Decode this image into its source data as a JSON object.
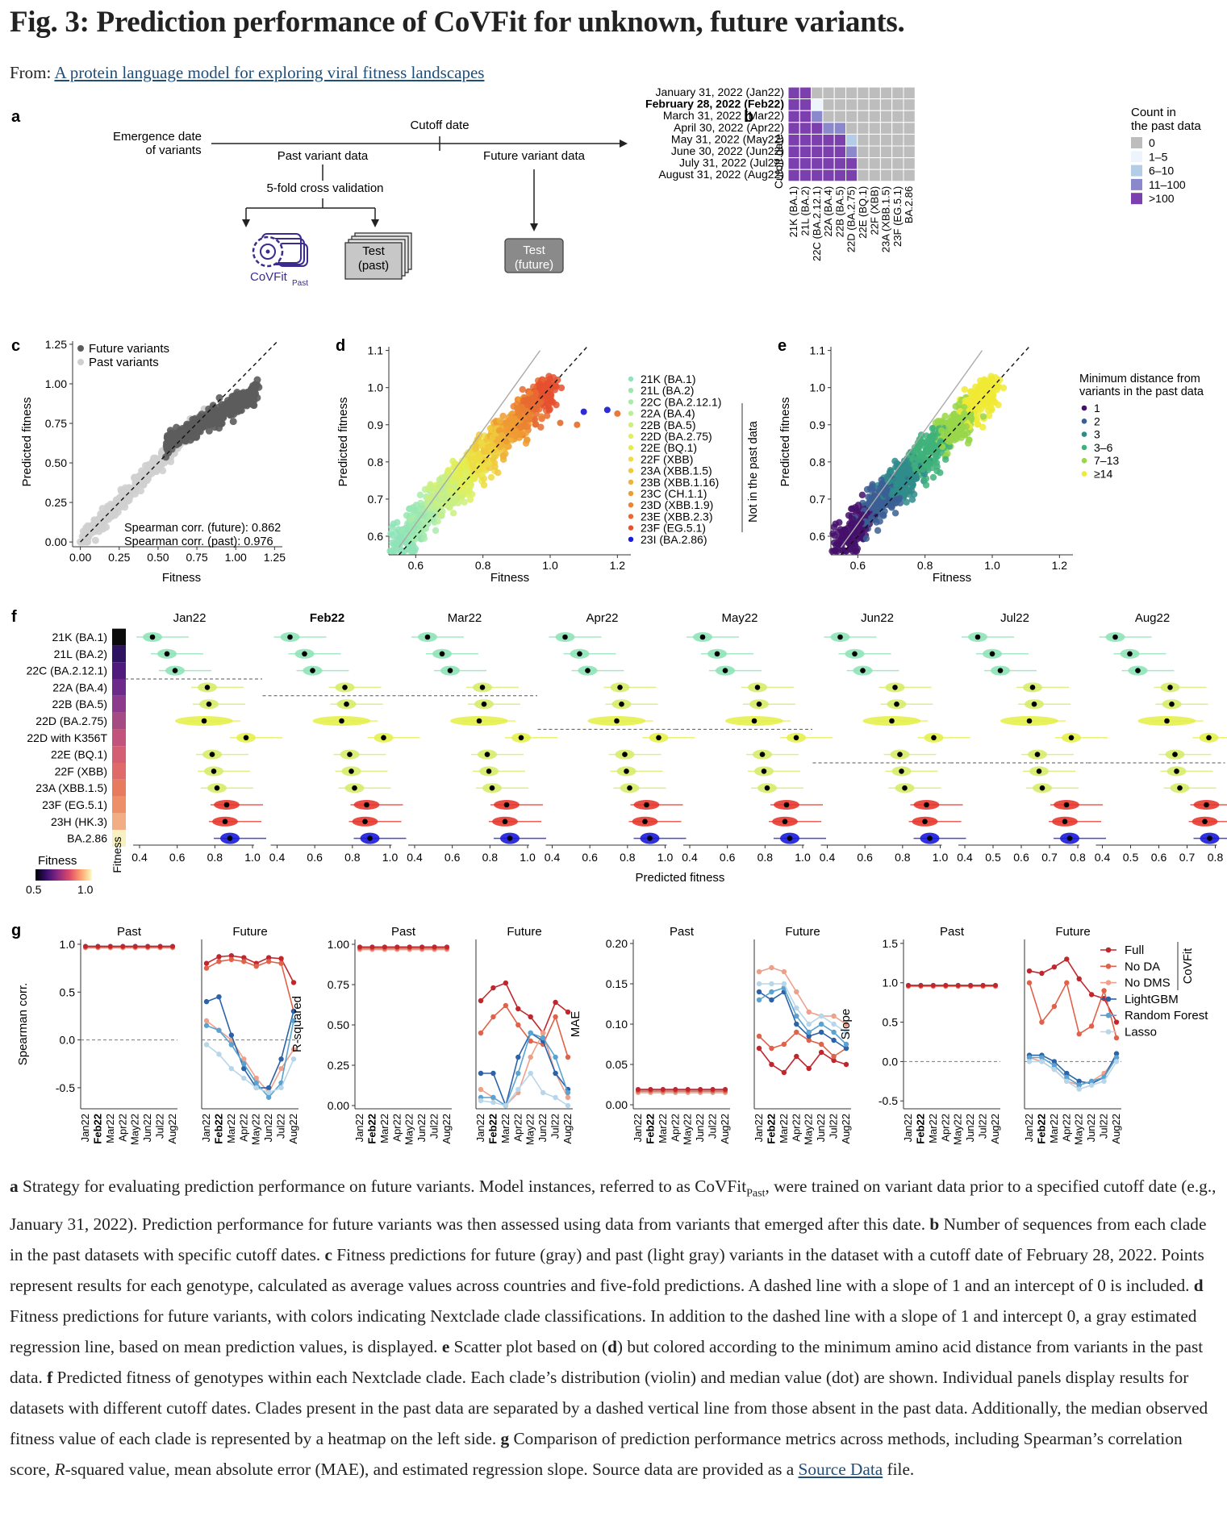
{
  "header": {
    "title": "Fig. 3: Prediction performance of CoVFit for unknown, future variants.",
    "from_label": "From:",
    "from_link": "A protein language model for exploring viral fitness landscapes"
  },
  "panel_a": {
    "letter": "a",
    "emergence": [
      "Emergence date",
      "of variants"
    ],
    "cutoff": "Cutoff date",
    "past": "Past variant data",
    "future": "Future variant data",
    "cv": "5-fold cross validation",
    "test_past": [
      "Test",
      "(past)"
    ],
    "test_future": [
      "Test",
      "(future)"
    ],
    "model": "CoVFit",
    "model_sub": "Past"
  },
  "panel_b": {
    "letter": "b",
    "ylabel": "Cutoff date",
    "rows": [
      "January 31, 2022 (Jan22)",
      "February 28, 2022 (Feb22)",
      "March 31, 2022 (Mar22)",
      "April 30, 2022 (Apr22)",
      "May 31, 2022 (May22)",
      "June 30, 2022 (Jun22)",
      "July 31, 2022 (Jul22)",
      "August 31, 2022 (Aug22)"
    ],
    "cols": [
      "21K (BA.1)",
      "21L (BA.2)",
      "22C (BA.2.12.1)",
      "22A (BA.4)",
      "22B (BA.5)",
      "22D (BA.2.75)",
      "22E (BQ.1)",
      "22F (XBB)",
      "23A (XBB.1.5)",
      "23F (EG.5.1)",
      "BA.2.86"
    ],
    "legend_title": [
      "Count in",
      "the past data"
    ],
    "legend": [
      "0",
      "1–5",
      "6–10",
      "11–100",
      ">100"
    ],
    "legend_colors": [
      "#bdbdbd",
      "#eef4fb",
      "#b3cde8",
      "#8c88cc",
      "#7b3fae"
    ],
    "matrix": [
      [
        4,
        4,
        0,
        0,
        0,
        0,
        0,
        0,
        0,
        0,
        0
      ],
      [
        4,
        4,
        1,
        0,
        0,
        0,
        0,
        0,
        0,
        0,
        0
      ],
      [
        4,
        4,
        3,
        0,
        0,
        0,
        0,
        0,
        0,
        0,
        0
      ],
      [
        4,
        4,
        4,
        3,
        3,
        0,
        0,
        0,
        0,
        0,
        0
      ],
      [
        4,
        4,
        4,
        4,
        4,
        2,
        0,
        0,
        0,
        0,
        0
      ],
      [
        4,
        4,
        4,
        4,
        4,
        3,
        0,
        0,
        0,
        0,
        0
      ],
      [
        4,
        4,
        4,
        4,
        4,
        4,
        0,
        0,
        0,
        0,
        0
      ],
      [
        4,
        4,
        4,
        4,
        4,
        4,
        0,
        0,
        0,
        0,
        0
      ]
    ]
  },
  "panel_c": {
    "letter": "c",
    "xlabel": "Fitness",
    "ylabel": "Predicted fitness",
    "xticks": [
      "0.00",
      "0.25",
      "0.50",
      "0.75",
      "1.00",
      "1.25"
    ],
    "yticks": [
      "0.00",
      "0.25",
      "0.50",
      "0.75",
      "1.00",
      "1.25"
    ],
    "legend": [
      "Future variants",
      "Past variants"
    ],
    "corr_future": "Spearman corr. (future): 0.862",
    "corr_past": "Spearman corr. (past): 0.976"
  },
  "panel_d": {
    "letter": "d",
    "xlabel": "Fitness",
    "ylabel": "Predicted fitness",
    "xticks": [
      "0.6",
      "0.8",
      "1.0",
      "1.2"
    ],
    "yticks": [
      "0.6",
      "0.7",
      "0.8",
      "0.9",
      "1.0",
      "1.1"
    ],
    "legend": [
      "21K (BA.1)",
      "21L (BA.2)",
      "22C (BA.2.12.1)",
      "22A (BA.4)",
      "22B (BA.5)",
      "22D (BA.2.75)",
      "22E (BQ.1)",
      "22F (XBB)",
      "23A (XBB.1.5)",
      "23B (XBB.1.16)",
      "23C (CH.1.1)",
      "23D (XBB.1.9)",
      "23E (XBB.2.3)",
      "23F (EG.5.1)",
      "23I (BA.2.86)"
    ],
    "legend_colors": [
      "#8fe3b8",
      "#9ae7b0",
      "#a8ebaa",
      "#bdee95",
      "#cbf07f",
      "#dcf062",
      "#e6ec4e",
      "#eddc42",
      "#f0c93b",
      "#efb236",
      "#ee9b33",
      "#eb8331",
      "#e86a30",
      "#e5502f",
      "#1a1adc"
    ],
    "side_label": "Not in the past data"
  },
  "panel_e": {
    "letter": "e",
    "xlabel": "Fitness",
    "ylabel": "Predicted fitness",
    "xticks": [
      "0.6",
      "0.8",
      "1.0",
      "1.2"
    ],
    "yticks": [
      "0.6",
      "0.7",
      "0.8",
      "0.9",
      "1.0",
      "1.1"
    ],
    "legend_title": [
      "Minimum distance from",
      "variants in the past data"
    ],
    "legend": [
      "1",
      "2",
      "3",
      "3–6",
      "7–13",
      "≥14"
    ],
    "legend_colors": [
      "#45106b",
      "#3b5f95",
      "#2f8c8b",
      "#3fb17a",
      "#98d64a",
      "#f0ea35"
    ]
  },
  "panel_f": {
    "letter": "f",
    "clades": [
      "21K (BA.1)",
      "21L (BA.2)",
      "22C (BA.2.12.1)",
      "22A (BA.4)",
      "22B (BA.5)",
      "22D (BA.2.75)",
      "22D with K356T",
      "22E (BQ.1)",
      "22F (XBB)",
      "23A (XBB.1.5)",
      "23F (EG.5.1)",
      "23H (HK.3)",
      "BA.2.86"
    ],
    "heat_colors": [
      "#0b0b0b",
      "#2e1460",
      "#4f1b7d",
      "#6c2a8a",
      "#8c3a8c",
      "#a54a82",
      "#c2547b",
      "#d55f72",
      "#e06a6a",
      "#e87a5d",
      "#ed9068",
      "#f2ad84",
      "#f8f0c0"
    ],
    "panels": [
      "Jan22",
      "Feb22",
      "Mar22",
      "Apr22",
      "May22",
      "Jun22",
      "Jul22",
      "Aug22"
    ],
    "bold_panel": "Feb22",
    "xticks_a": [
      "0.4",
      "0.6",
      "0.8",
      "1.0"
    ],
    "xticks_jul": [
      "0.4",
      "0.5",
      "0.6",
      "0.7",
      "0.8"
    ],
    "xlabel": "Predicted fitness",
    "legend_title": "Fitness",
    "legend_min": "0.5",
    "legend_max": "1.0",
    "side_label": "Fitness"
  },
  "panel_g": {
    "letter": "g",
    "past": "Past",
    "future": "Future",
    "metrics": [
      "Spearman corr.",
      "R-squared",
      "MAE",
      "Slope"
    ],
    "months": [
      "Jan22",
      "Feb22",
      "Mar22",
      "Apr22",
      "May22",
      "Jun22",
      "Jul22",
      "Aug22"
    ],
    "legend": [
      "Full",
      "No DA",
      "No DMS",
      "LightGBM",
      "Random Forest",
      "Lasso"
    ],
    "legend_colors": [
      "#c0272d",
      "#e0624a",
      "#eda08a",
      "#2b62a8",
      "#5aa3d0",
      "#b7d6ea"
    ],
    "legend_group": "CoVFit"
  },
  "caption": {
    "a_letter": "a",
    "a_text1": " Strategy for evaluating prediction performance on future variants. Model instances, referred to as CoVFit",
    "a_sub": "Past",
    "a_text2": ", were trained on variant data prior to a specified cutoff date (e.g., January 31, 2022). Prediction performance for future variants was then assessed using data from variants that emerged after this date. ",
    "b_letter": "b",
    "b_text": " Number of sequences from each clade in the past datasets with specific cutoff dates. ",
    "c_letter": "c",
    "c_text": " Fitness predictions for future (gray) and past (light gray) variants in the dataset with a cutoff date of February 28, 2022. Points represent results for each genotype, calculated as average values across countries and five-fold predictions. A dashed line with a slope of 1 and an intercept of 0 is included. ",
    "d_letter": "d",
    "d_text": " Fitness predictions for future variants, with colors indicating Nextclade clade classifications. In addition to the dashed line with a slope of 1 and intercept 0, a gray estimated regression line, based on mean prediction values, is displayed. ",
    "e_letter": "e",
    "e_text1": " Scatter plot based on (",
    "e_ref": "d",
    "e_text2": ") but colored according to the minimum amino acid distance from variants in the past data. ",
    "f_letter": "f",
    "f_text": " Predicted fitness of genotypes within each Nextclade clade. Each clade’s distribution (violin) and median value (dot) are shown. Individual panels display results for datasets with different cutoff dates. Clades present in the past data are separated by a dashed vertical line from those absent in the past data. Additionally, the median observed fitness value of each clade is represented by a heatmap on the left side. ",
    "g_letter": "g",
    "g_text1": " Comparison of prediction performance metrics across methods, including Spearman’s correlation score, ",
    "g_r": "R",
    "g_text2": "-squared value, mean absolute error (MAE), and estimated regression slope. Source data are provided as a ",
    "g_link": "Source Data",
    "g_text3": " file."
  }
}
